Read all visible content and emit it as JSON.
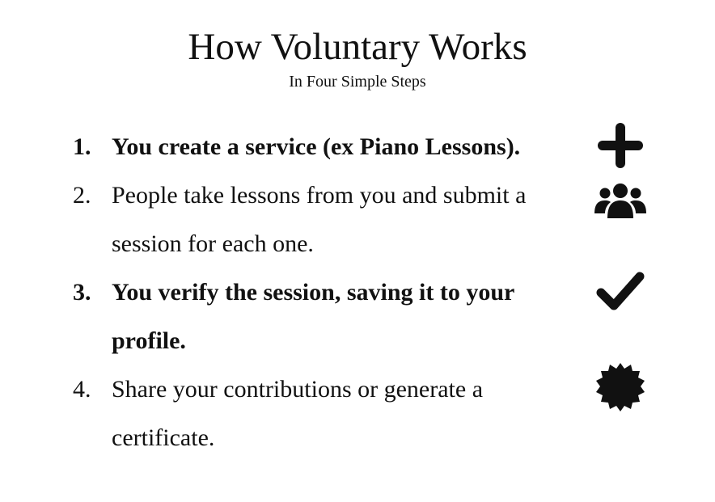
{
  "header": {
    "title": "How Voluntary Works",
    "subtitle": "In Four Simple Steps"
  },
  "steps": [
    {
      "number": "1.",
      "text": "You create a service (ex Piano Lessons).",
      "icon": "plus-icon"
    },
    {
      "number": "2.",
      "text": "People take lessons from you and submit a session for each one.",
      "icon": "users-icon"
    },
    {
      "number": "3.",
      "text": "You verify the session, saving it to your profile.",
      "icon": "check-icon"
    },
    {
      "number": "4.",
      "text": "Share your contributions or generate a certificate.",
      "icon": "certificate-icon"
    }
  ]
}
